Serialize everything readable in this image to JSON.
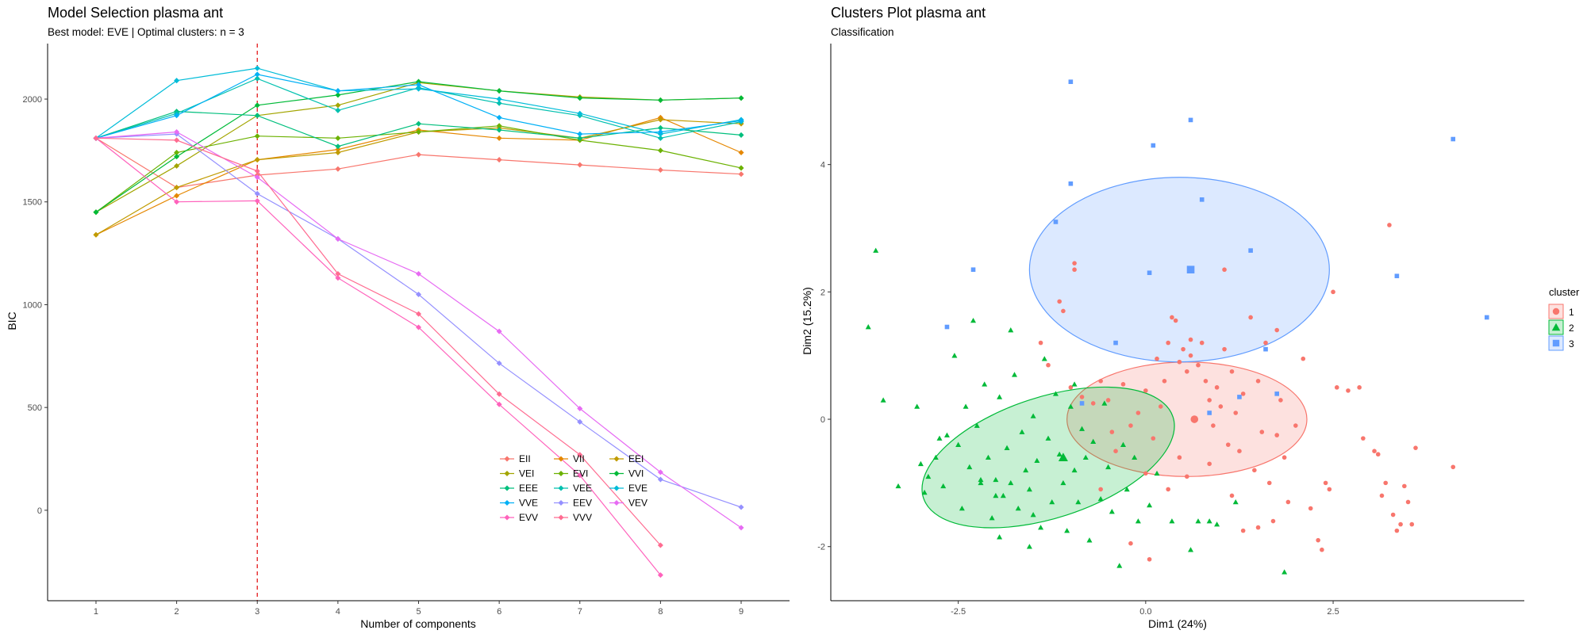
{
  "chart_data": [
    {
      "type": "line",
      "title": "Model Selection plasma ant",
      "subtitle": "Best model: EVE | Optimal clusters: n = 3",
      "xlabel": "Number of components",
      "ylabel": "BIC",
      "x": [
        1,
        2,
        3,
        4,
        5,
        6,
        7,
        8,
        9
      ],
      "xlim": [
        0.4,
        9.6
      ],
      "ylim": [
        -440,
        2270
      ],
      "yticks": [
        0,
        500,
        1000,
        1500,
        2000
      ],
      "best_k": 3,
      "series": [
        {
          "name": "EII",
          "color": "#F8766D",
          "values": [
            1810,
            1570,
            1630,
            1660,
            1730,
            1705,
            1680,
            1655,
            1635
          ]
        },
        {
          "name": "VII",
          "color": "#E58700",
          "values": [
            1340,
            1530,
            1705,
            1755,
            1850,
            1810,
            1800,
            1910,
            1740
          ]
        },
        {
          "name": "EEI",
          "color": "#C09B00",
          "values": [
            1340,
            1570,
            1705,
            1740,
            1840,
            1860,
            1810,
            1900,
            1880
          ]
        },
        {
          "name": "VEI",
          "color": "#A3A500",
          "values": [
            1450,
            1675,
            1920,
            1970,
            2080,
            2040,
            2010,
            1995,
            2005
          ]
        },
        {
          "name": "EVI",
          "color": "#6BB100",
          "values": [
            1450,
            1740,
            1820,
            1810,
            1840,
            1870,
            1800,
            1750,
            1665
          ]
        },
        {
          "name": "VVI",
          "color": "#00BA38",
          "values": [
            1450,
            1720,
            1970,
            2020,
            2085,
            2040,
            2005,
            1995,
            2005
          ]
        },
        {
          "name": "EEE",
          "color": "#00BF7D",
          "values": [
            1810,
            1940,
            1920,
            1770,
            1880,
            1850,
            1810,
            1860,
            1825
          ]
        },
        {
          "name": "VEE",
          "color": "#00C0AF",
          "values": [
            1810,
            1930,
            2100,
            1945,
            2055,
            1980,
            1920,
            1810,
            1890
          ]
        },
        {
          "name": "EVE",
          "color": "#00BCD8",
          "values": [
            1810,
            2090,
            2150,
            2040,
            2050,
            2000,
            1930,
            1830,
            1900
          ]
        },
        {
          "name": "VVE",
          "color": "#00B0F6",
          "values": [
            1810,
            1920,
            2120,
            2040,
            2070,
            1910,
            1830,
            1840,
            1895
          ]
        },
        {
          "name": "EEV",
          "color": "#9590FF",
          "values": [
            1810,
            1830,
            1540,
            1320,
            1050,
            715,
            430,
            150,
            15
          ]
        },
        {
          "name": "VEV",
          "color": "#E76BF3",
          "values": [
            1810,
            1840,
            1620,
            1320,
            1150,
            870,
            495,
            185,
            -85
          ]
        },
        {
          "name": "EVV",
          "color": "#FF62BC",
          "values": [
            1810,
            1500,
            1505,
            1130,
            890,
            515,
            170,
            -315,
            null
          ]
        },
        {
          "name": "VVV",
          "color": "#FF6C91",
          "values": [
            1810,
            1800,
            1650,
            1150,
            955,
            565,
            270,
            -170,
            null
          ]
        }
      ],
      "legend_rows": [
        [
          "EII",
          "VII",
          "EEI"
        ],
        [
          "VEI",
          "EVI",
          "VVI"
        ],
        [
          "EEE",
          "VEE",
          "EVE"
        ],
        [
          "VVE",
          "EEV",
          "VEV"
        ],
        [
          "EVV",
          "VVV"
        ]
      ]
    },
    {
      "type": "scatter",
      "title": "Clusters Plot plasma ant",
      "subtitle": "Classification",
      "xlabel": "Dim1 (24%)",
      "ylabel": "Dim2 (15.2%)",
      "xlim": [
        -4.2,
        5.05
      ],
      "ylim": [
        -2.85,
        5.9
      ],
      "xticks": [
        -2.5,
        0.0,
        2.5
      ],
      "xtick_labels": [
        "-2.5",
        "0.0",
        "2.5"
      ],
      "yticks": [
        -2,
        0,
        2,
        4
      ],
      "yticks_labels": [
        "-2",
        "0",
        "2",
        "4"
      ],
      "legend_title": "cluster",
      "clusters": [
        {
          "name": "1",
          "color": "#F8766D",
          "fill": "#F8766D",
          "shape": "circle",
          "center": [
            0.65,
            0.0
          ],
          "ellipse": {
            "cx": 0.55,
            "cy": 0.0,
            "rx": 1.6,
            "ry": 0.9,
            "angle": 0
          },
          "points": [
            [
              -1.15,
              1.85
            ],
            [
              -1.1,
              1.7
            ],
            [
              -1.4,
              1.2
            ],
            [
              -1.3,
              0.85
            ],
            [
              -1.0,
              0.5
            ],
            [
              -0.85,
              0.35
            ],
            [
              -0.7,
              0.25
            ],
            [
              -0.6,
              0.6
            ],
            [
              -0.5,
              0.3
            ],
            [
              -0.45,
              -0.2
            ],
            [
              -0.3,
              0.55
            ],
            [
              -0.2,
              -0.1
            ],
            [
              -0.1,
              0.1
            ],
            [
              0.0,
              0.45
            ],
            [
              0.1,
              -0.3
            ],
            [
              0.2,
              0.2
            ],
            [
              0.25,
              0.6
            ],
            [
              0.3,
              1.2
            ],
            [
              0.35,
              1.6
            ],
            [
              0.4,
              1.55
            ],
            [
              0.45,
              0.9
            ],
            [
              0.5,
              1.1
            ],
            [
              0.55,
              0.75
            ],
            [
              0.6,
              1.0
            ],
            [
              0.7,
              0.85
            ],
            [
              0.75,
              1.2
            ],
            [
              0.8,
              0.6
            ],
            [
              0.85,
              0.3
            ],
            [
              0.9,
              -0.1
            ],
            [
              0.95,
              0.5
            ],
            [
              1.0,
              0.2
            ],
            [
              1.05,
              1.1
            ],
            [
              1.1,
              -0.4
            ],
            [
              1.15,
              0.75
            ],
            [
              1.2,
              0.1
            ],
            [
              1.25,
              -0.5
            ],
            [
              1.3,
              0.4
            ],
            [
              1.4,
              1.6
            ],
            [
              1.45,
              -0.8
            ],
            [
              1.5,
              0.6
            ],
            [
              1.55,
              -0.2
            ],
            [
              1.6,
              1.2
            ],
            [
              1.65,
              -1.0
            ],
            [
              1.7,
              -1.6
            ],
            [
              1.75,
              1.4
            ],
            [
              1.8,
              0.3
            ],
            [
              1.85,
              -0.6
            ],
            [
              1.9,
              -1.3
            ],
            [
              2.0,
              -0.1
            ],
            [
              2.1,
              0.95
            ],
            [
              2.2,
              -1.4
            ],
            [
              2.3,
              -1.9
            ],
            [
              2.35,
              -2.05
            ],
            [
              2.4,
              -1.0
            ],
            [
              2.45,
              -1.1
            ],
            [
              2.5,
              2.0
            ],
            [
              2.55,
              0.5
            ],
            [
              2.7,
              0.45
            ],
            [
              2.85,
              0.5
            ],
            [
              2.9,
              -0.3
            ],
            [
              3.05,
              -0.5
            ],
            [
              3.1,
              -0.55
            ],
            [
              3.15,
              -1.2
            ],
            [
              3.2,
              -1.0
            ],
            [
              3.3,
              -1.5
            ],
            [
              3.35,
              -1.75
            ],
            [
              3.4,
              -1.65
            ],
            [
              3.45,
              -1.05
            ],
            [
              3.5,
              -1.3
            ],
            [
              3.55,
              -1.65
            ],
            [
              3.6,
              -0.45
            ],
            [
              4.1,
              -0.75
            ],
            [
              3.25,
              3.05
            ],
            [
              -0.95,
              2.45
            ],
            [
              -0.95,
              2.35
            ],
            [
              1.05,
              2.35
            ],
            [
              0.6,
              1.25
            ],
            [
              0.15,
              0.95
            ],
            [
              -0.2,
              -1.95
            ],
            [
              0.05,
              -2.2
            ],
            [
              0.3,
              -1.1
            ],
            [
              0.55,
              -0.9
            ],
            [
              0.45,
              -0.6
            ],
            [
              1.3,
              -1.75
            ],
            [
              1.5,
              -1.7
            ],
            [
              1.75,
              -0.25
            ],
            [
              -0.6,
              -1.1
            ],
            [
              -0.4,
              -0.5
            ],
            [
              0.0,
              -0.85
            ],
            [
              1.15,
              -1.2
            ],
            [
              0.85,
              -0.7
            ]
          ]
        },
        {
          "name": "2",
          "color": "#00BA38",
          "fill": "#00BA38",
          "shape": "triangle",
          "center": [
            -1.1,
            -0.6
          ],
          "ellipse": {
            "cx": -1.3,
            "cy": -0.6,
            "rx": 1.75,
            "ry": 0.95,
            "angle": -18
          },
          "points": [
            [
              -3.6,
              2.65
            ],
            [
              -3.7,
              1.45
            ],
            [
              -3.5,
              0.3
            ],
            [
              -3.05,
              0.2
            ],
            [
              -3.3,
              -1.05
            ],
            [
              -3.0,
              -0.7
            ],
            [
              -2.9,
              -0.9
            ],
            [
              -2.95,
              -1.15
            ],
            [
              -2.8,
              -0.6
            ],
            [
              -2.75,
              -0.3
            ],
            [
              -2.7,
              -1.05
            ],
            [
              -2.65,
              -0.25
            ],
            [
              -2.55,
              1.0
            ],
            [
              -2.5,
              -0.4
            ],
            [
              -2.45,
              -1.4
            ],
            [
              -2.4,
              0.2
            ],
            [
              -2.35,
              -0.75
            ],
            [
              -2.3,
              1.55
            ],
            [
              -2.25,
              -0.1
            ],
            [
              -2.2,
              -1.0
            ],
            [
              -2.15,
              0.55
            ],
            [
              -2.1,
              -0.6
            ],
            [
              -2.05,
              -1.55
            ],
            [
              -2.0,
              -0.95
            ],
            [
              -1.95,
              0.35
            ],
            [
              -1.9,
              -1.2
            ],
            [
              -1.85,
              -0.45
            ],
            [
              -1.8,
              -1.0
            ],
            [
              -1.75,
              0.7
            ],
            [
              -1.7,
              -1.4
            ],
            [
              -1.65,
              -0.2
            ],
            [
              -1.6,
              -0.8
            ],
            [
              -1.55,
              -1.1
            ],
            [
              -1.5,
              0.05
            ],
            [
              -1.45,
              -0.65
            ],
            [
              -1.4,
              -1.7
            ],
            [
              -1.35,
              0.95
            ],
            [
              -1.3,
              -0.3
            ],
            [
              -1.25,
              -1.3
            ],
            [
              -1.2,
              0.4
            ],
            [
              -1.15,
              -0.55
            ],
            [
              -1.1,
              -1.0
            ],
            [
              -1.05,
              -1.75
            ],
            [
              -1.0,
              0.2
            ],
            [
              -0.95,
              -0.8
            ],
            [
              -0.9,
              -1.3
            ],
            [
              -0.85,
              -0.15
            ],
            [
              -0.8,
              -0.6
            ],
            [
              -0.75,
              -1.9
            ],
            [
              -0.7,
              -0.35
            ],
            [
              -0.6,
              -1.25
            ],
            [
              -0.55,
              0.25
            ],
            [
              -0.5,
              -0.75
            ],
            [
              -0.45,
              -1.45
            ],
            [
              -0.35,
              -2.3
            ],
            [
              -0.3,
              -0.4
            ],
            [
              -0.25,
              -1.1
            ],
            [
              -0.15,
              -0.6
            ],
            [
              -0.1,
              -1.6
            ],
            [
              0.05,
              -1.35
            ],
            [
              0.15,
              -0.85
            ],
            [
              0.35,
              -1.6
            ],
            [
              0.6,
              -2.05
            ],
            [
              0.7,
              -1.6
            ],
            [
              0.85,
              -1.6
            ],
            [
              0.95,
              -1.65
            ],
            [
              1.2,
              -1.3
            ],
            [
              1.85,
              -2.4
            ],
            [
              -1.95,
              -1.85
            ],
            [
              -1.55,
              -2.0
            ],
            [
              -1.8,
              1.4
            ],
            [
              -2.0,
              -1.2
            ],
            [
              -2.2,
              -0.95
            ],
            [
              -1.5,
              -1.5
            ],
            [
              -0.95,
              0.55
            ]
          ]
        },
        {
          "name": "3",
          "color": "#619CFF",
          "fill": "#619CFF",
          "shape": "square",
          "center": [
            0.6,
            2.35
          ],
          "ellipse": {
            "cx": 0.45,
            "cy": 2.35,
            "rx": 2.0,
            "ry": 1.45,
            "angle": 0
          },
          "points": [
            [
              -1.0,
              5.3
            ],
            [
              0.6,
              4.7
            ],
            [
              0.1,
              4.3
            ],
            [
              -1.0,
              3.7
            ],
            [
              0.75,
              3.45
            ],
            [
              -1.2,
              3.1
            ],
            [
              1.4,
              2.65
            ],
            [
              -2.3,
              2.35
            ],
            [
              0.05,
              2.3
            ],
            [
              3.35,
              2.25
            ],
            [
              4.1,
              4.4
            ],
            [
              4.55,
              1.6
            ],
            [
              -2.65,
              1.45
            ],
            [
              -0.4,
              1.2
            ],
            [
              1.6,
              1.1
            ],
            [
              1.75,
              0.4
            ],
            [
              1.25,
              0.35
            ],
            [
              -0.85,
              0.25
            ],
            [
              0.85,
              0.1
            ]
          ]
        }
      ]
    }
  ]
}
